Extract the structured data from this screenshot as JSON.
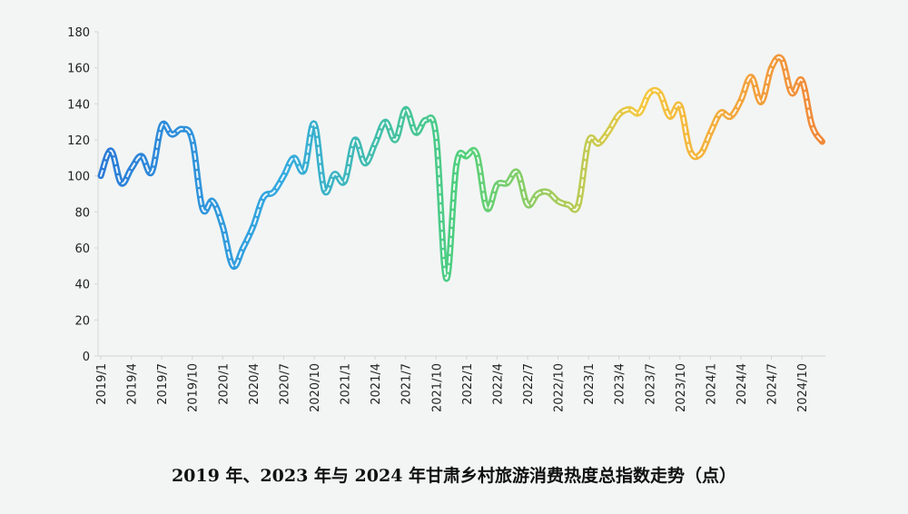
{
  "chart_data": {
    "type": "line",
    "title": "2019 年、2023 年与 2024 年甘肃乡村旅游消费热度总指数走势（点）",
    "categories": [
      "2019/1",
      null,
      null,
      "2019/4",
      null,
      null,
      "2019/7",
      null,
      null,
      "2019/10",
      null,
      null,
      "2020/1",
      null,
      null,
      "2020/4",
      null,
      null,
      "2020/7",
      null,
      null,
      "2020/10",
      null,
      null,
      "2021/1",
      null,
      null,
      "2021/4",
      null,
      null,
      "2021/7",
      null,
      null,
      "2021/10",
      null,
      null,
      "2022/1",
      null,
      null,
      "2022/4",
      null,
      null,
      "2022/7",
      null,
      null,
      "2022/10",
      null,
      null,
      "2023/1",
      null,
      null,
      "2023/4",
      null,
      null,
      "2023/7",
      null,
      null,
      "2023/10",
      null,
      null,
      "2024/1",
      null,
      null,
      "2024/4",
      null,
      null,
      "2024/7",
      null,
      null,
      "2024/10",
      null,
      null
    ],
    "values": [
      100,
      114,
      96,
      104,
      111,
      102,
      128,
      123,
      126,
      120,
      82,
      86,
      72,
      50,
      60,
      72,
      88,
      91,
      100,
      110,
      103,
      129,
      92,
      101,
      97,
      120,
      107,
      118,
      130,
      120,
      137,
      124,
      131,
      122,
      43,
      106,
      111,
      112,
      82,
      95,
      96,
      102,
      84,
      90,
      91,
      86,
      84,
      84,
      119,
      118,
      125,
      134,
      137,
      135,
      146,
      146,
      133,
      139,
      114,
      112,
      124,
      135,
      133,
      142,
      155,
      141,
      160,
      165,
      146,
      153,
      128,
      119
    ],
    "gradient": [
      "#2b7bd6",
      "#34a9e0",
      "#4fd07c",
      "#f4c840",
      "#f0883a"
    ],
    "ylim": [
      0,
      180
    ],
    "yticks": [
      0,
      20,
      40,
      60,
      80,
      100,
      120,
      140,
      160,
      180
    ]
  }
}
